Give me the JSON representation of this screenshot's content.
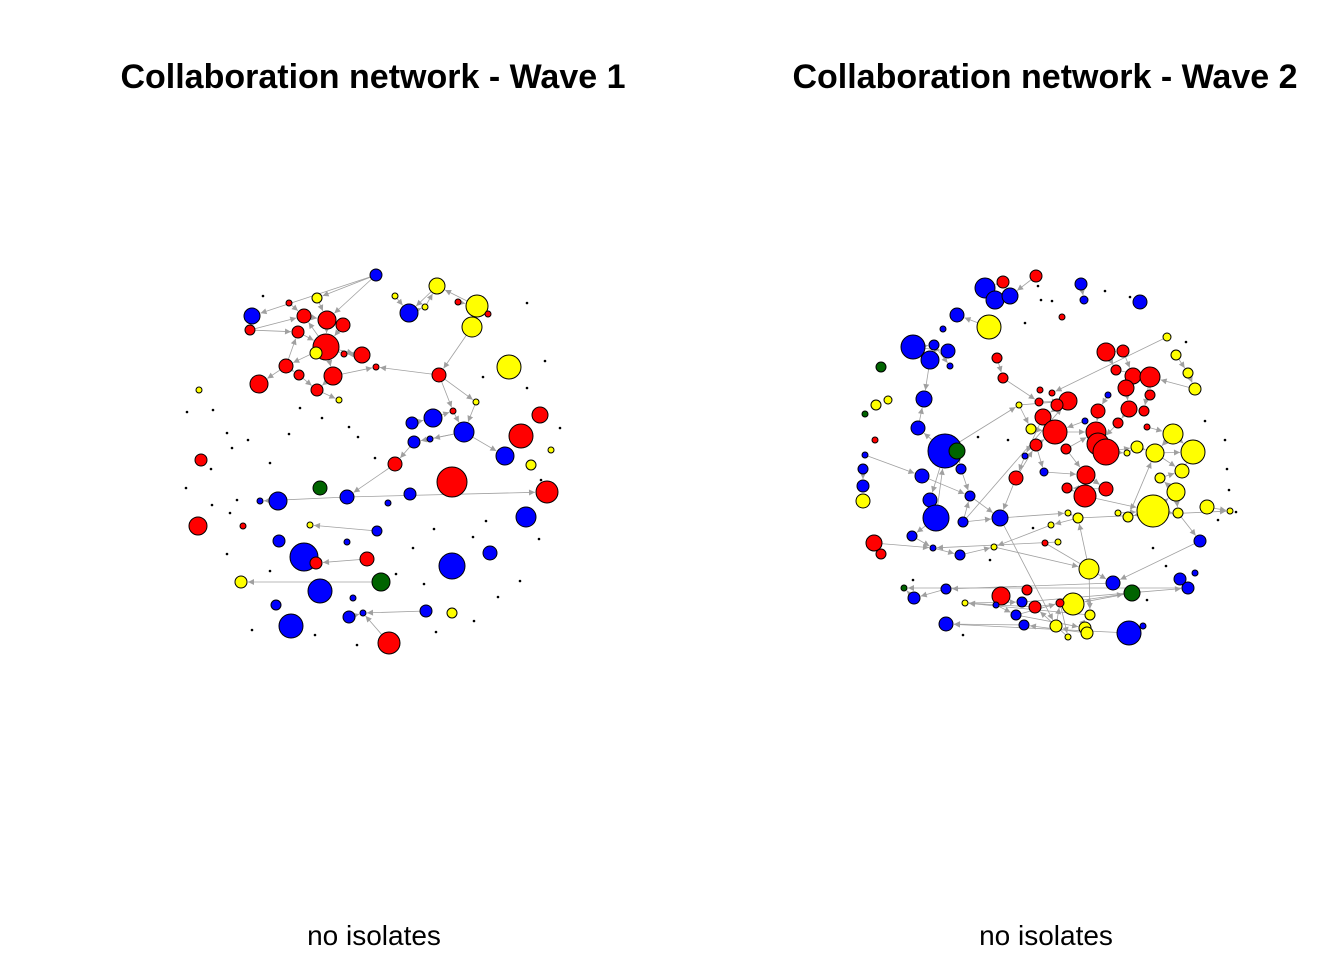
{
  "colors": {
    "red": "#ff0000",
    "blue": "#0000ff",
    "yellow": "#ffff00",
    "green": "#006400",
    "edge": "#a0a0a0",
    "outline": "#000000"
  },
  "panels": [
    {
      "title": "Collaboration network - Wave 1",
      "subtitle": "no isolates"
    },
    {
      "title": "Collaboration network - Wave 2",
      "subtitle": "no isolates"
    }
  ]
}
